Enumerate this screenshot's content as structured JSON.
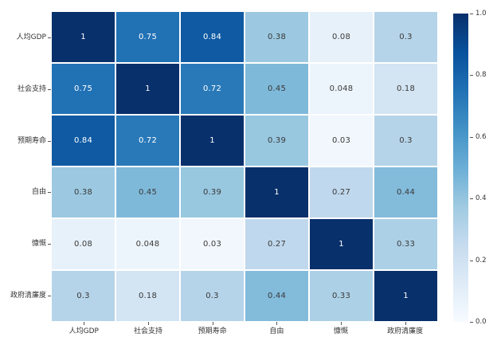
{
  "chart_data": {
    "type": "heatmap",
    "title": "",
    "xlabel": "",
    "ylabel": "",
    "grid": "off",
    "legend_position": "right-colorbar",
    "categories": [
      "人均GDP",
      "社会支持",
      "预期寿命",
      "自由",
      "慷慨",
      "政府清廉度"
    ],
    "matrix": [
      [
        1,
        0.75,
        0.84,
        0.38,
        0.08,
        0.3
      ],
      [
        0.75,
        1,
        0.72,
        0.45,
        0.048,
        0.18
      ],
      [
        0.84,
        0.72,
        1,
        0.39,
        0.03,
        0.3
      ],
      [
        0.38,
        0.45,
        0.39,
        1,
        0.27,
        0.44
      ],
      [
        0.08,
        0.048,
        0.03,
        0.27,
        1,
        0.33
      ],
      [
        0.3,
        0.18,
        0.3,
        0.44,
        0.33,
        1
      ]
    ],
    "cell_labels": [
      [
        "1",
        "0.75",
        "0.84",
        "0.38",
        "0.08",
        "0.3"
      ],
      [
        "0.75",
        "1",
        "0.72",
        "0.45",
        "0.048",
        "0.18"
      ],
      [
        "0.84",
        "0.72",
        "1",
        "0.39",
        "0.03",
        "0.3"
      ],
      [
        "0.38",
        "0.45",
        "0.39",
        "1",
        "0.27",
        "0.44"
      ],
      [
        "0.08",
        "0.048",
        "0.03",
        "0.27",
        "1",
        "0.33"
      ],
      [
        "0.3",
        "0.18",
        "0.3",
        "0.44",
        "0.33",
        "1"
      ]
    ],
    "colormap": {
      "name": "Blues",
      "stops": [
        {
          "pos": 0.0,
          "color": "#f7fbff"
        },
        {
          "pos": 0.125,
          "color": "#deebf7"
        },
        {
          "pos": 0.25,
          "color": "#c6dbef"
        },
        {
          "pos": 0.375,
          "color": "#9ecae1"
        },
        {
          "pos": 0.5,
          "color": "#6baed6"
        },
        {
          "pos": 0.625,
          "color": "#4292c6"
        },
        {
          "pos": 0.75,
          "color": "#2171b5"
        },
        {
          "pos": 0.875,
          "color": "#08519c"
        },
        {
          "pos": 1.0,
          "color": "#08306b"
        }
      ]
    },
    "colorbar": {
      "min": 0.0,
      "max": 1.0,
      "tick_values": [
        1.0,
        0.8,
        0.6,
        0.4,
        0.2,
        0.0
      ],
      "tick_labels": [
        "1.0",
        "0.8",
        "0.6",
        "0.4",
        "0.2",
        "0.0"
      ]
    },
    "colors": {
      "annotation_on_dark": "#ffffff",
      "annotation_on_light": "#3a3a3a",
      "axis_label": "#333333",
      "tick_mark": "#555555",
      "cell_gap": "#ffffff",
      "background": "#ffffff"
    },
    "white_text_threshold": 0.6
  }
}
